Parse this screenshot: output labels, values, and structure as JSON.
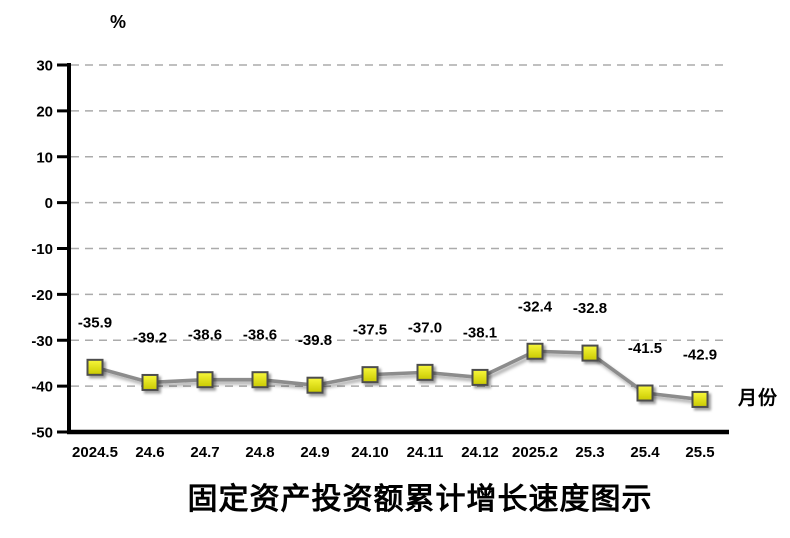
{
  "chart_data": {
    "type": "line",
    "title": "固定资产投资额累计增长速度图示",
    "ylabel": "%",
    "xlabel": "月份",
    "categories": [
      "2024.5",
      "24.6",
      "24.7",
      "24.8",
      "24.9",
      "24.10",
      "24.11",
      "24.12",
      "2025.2",
      "25.3",
      "25.4",
      "25.5"
    ],
    "series": [
      {
        "name": "固定资产投资额累计增长速度",
        "values": [
          -35.9,
          -39.2,
          -38.6,
          -38.6,
          -39.8,
          -37.5,
          -37.0,
          -38.1,
          -32.4,
          -32.8,
          -41.5,
          -42.9
        ],
        "labels": [
          "-35.9",
          "-39.2",
          "-38.6",
          "-38.6",
          "-39.8",
          "-37.5",
          "-37.0",
          "-38.1",
          "-32.4",
          "-32.8",
          "-41.5",
          "-42.9"
        ]
      }
    ],
    "ylim": [
      -50,
      30
    ],
    "yticks": [
      30,
      20,
      10,
      0,
      -10,
      -20,
      -30,
      -40,
      -50
    ],
    "grid": "horizontal-dashed",
    "legend_position": "none",
    "marker": "square",
    "data_labels_shown": true,
    "colors": {
      "line": "#8c8c8c",
      "marker_fill_top": "#f8f83c",
      "marker_fill_bottom": "#c9c900",
      "marker_border": "#4d4d4d",
      "gridline": "#ababab",
      "axis": "#000000",
      "text": "#000000",
      "background": "#ffffff"
    }
  }
}
